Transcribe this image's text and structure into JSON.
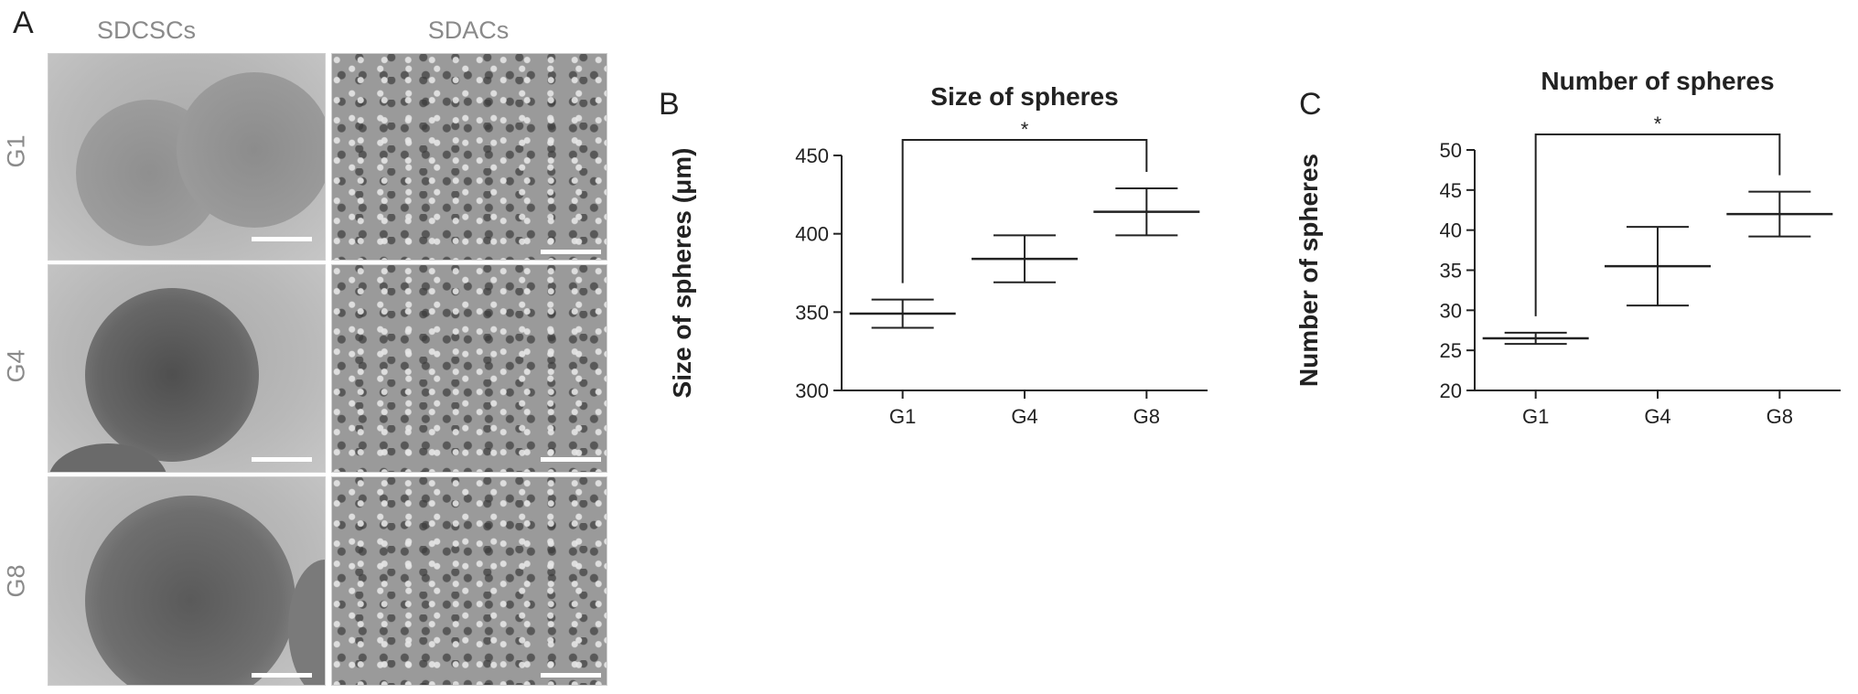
{
  "panel_a": {
    "letter": "A",
    "columns": [
      "SDCSCs",
      "SDACs"
    ],
    "rows": [
      "G1",
      "G4",
      "G8"
    ]
  },
  "chart_data": [
    {
      "panel": "B",
      "type": "scatter",
      "title": "Size of spheres",
      "ylabel": "Size of spheres (μm)",
      "xlabel": "",
      "categories": [
        "G1",
        "G4",
        "G8"
      ],
      "mean": [
        349,
        384,
        414
      ],
      "upper": [
        358,
        399,
        429
      ],
      "lower": [
        340,
        369,
        399
      ],
      "ylim": [
        300,
        450
      ],
      "yticks": [
        300,
        350,
        400,
        450
      ],
      "significance": {
        "from": "G1",
        "to": "G8",
        "label": "*"
      }
    },
    {
      "panel": "C",
      "type": "scatter",
      "title": "Number of spheres",
      "ylabel": "Number of spheres",
      "xlabel": "",
      "categories": [
        "G1",
        "G4",
        "G8"
      ],
      "mean": [
        26.5,
        35.5,
        42
      ],
      "upper": [
        27.2,
        40.4,
        44.8
      ],
      "lower": [
        25.8,
        30.6,
        39.2
      ],
      "ylim": [
        20,
        50
      ],
      "yticks": [
        20,
        25,
        30,
        35,
        40,
        45,
        50
      ],
      "significance": {
        "from": "G1",
        "to": "G8",
        "label": "*"
      }
    }
  ]
}
